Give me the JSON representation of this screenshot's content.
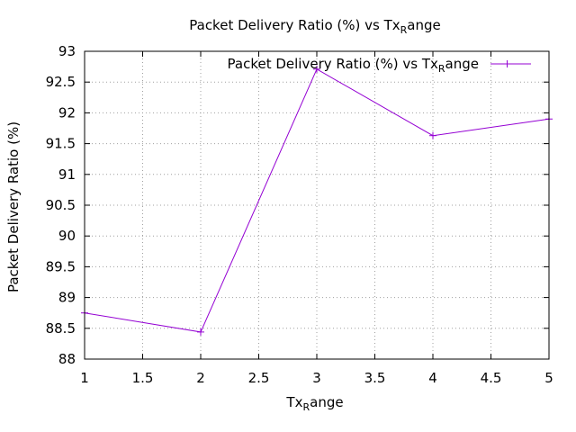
{
  "chart_data": {
    "type": "line",
    "title": "Packet Delivery Ratio (%) vs Tx",
    "title_sub": "R",
    "title_tail": "ange",
    "xlabel": "Tx",
    "xlabel_sub": "R",
    "xlabel_tail": "ange",
    "ylabel": "Packet Delivery Ratio (%)",
    "xlim": [
      1,
      5
    ],
    "ylim": [
      88,
      93
    ],
    "xticks": [
      "1",
      "1.5",
      "2",
      "2.5",
      "3",
      "3.5",
      "4",
      "4.5",
      "5"
    ],
    "yticks": [
      "88",
      "88.5",
      "89",
      "89.5",
      "90",
      "90.5",
      "91",
      "91.5",
      "92",
      "92.5",
      "93"
    ],
    "grid": true,
    "legend_position": "top-right",
    "series": [
      {
        "name": "Packet Delivery Ratio (%) vs Tx",
        "name_sub": "R",
        "name_tail": "ange",
        "color": "#9400d3",
        "x": [
          1,
          2,
          3,
          4,
          5
        ],
        "y": [
          88.75,
          88.44,
          92.71,
          91.63,
          91.9
        ]
      }
    ]
  }
}
